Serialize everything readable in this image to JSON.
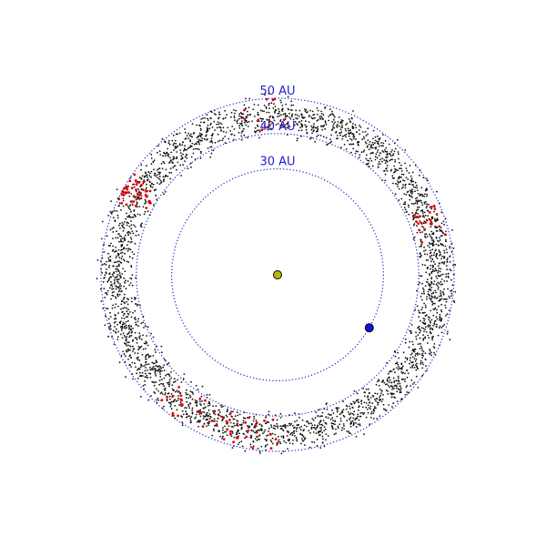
{
  "diagram": {
    "units": "AU",
    "rings": [
      {
        "radius_au": 30,
        "label": "30 AU"
      },
      {
        "radius_au": 40,
        "label": "40 AU"
      },
      {
        "radius_au": 50,
        "label": "50 AU"
      }
    ],
    "belt": {
      "inner_au": 38,
      "outer_au": 53,
      "background_count": 3200,
      "resonant_count": 120
    },
    "planet": {
      "radius_au": 30,
      "angle_deg": -30
    },
    "colors": {
      "ring": "#1f1fd1",
      "label": "#1f1fd1",
      "background_objects": "#111111",
      "resonant_objects": "#e00000",
      "sun": "#b8b800",
      "planet": "#1010e0"
    },
    "icons": {
      "sun": "sun-dot-icon",
      "planet": "planet-dot-icon"
    }
  }
}
